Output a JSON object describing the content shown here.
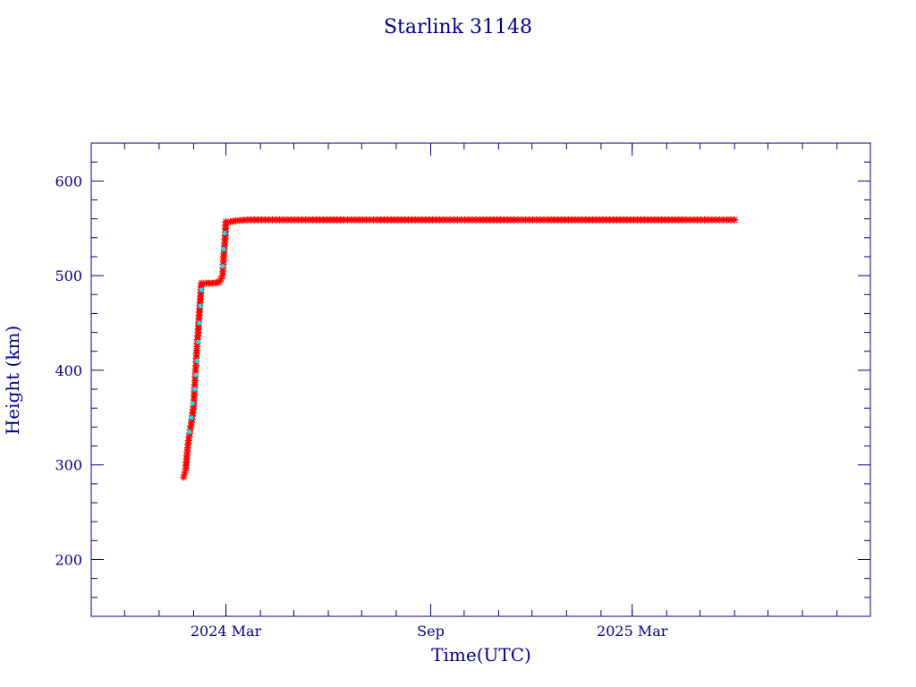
{
  "chart_data": {
    "type": "scatter",
    "title": "Starlink 31148",
    "xlabel": "Time(UTC)",
    "ylabel": "Height (km)",
    "xlim": [
      "2023-11-01",
      "2025-10-01"
    ],
    "ylim": [
      140,
      640
    ],
    "x_ticks": [
      {
        "date": "2024-03-01",
        "label": "2024 Mar"
      },
      {
        "date": "2024-09-01",
        "label": "Sep"
      },
      {
        "date": "2025-03-01",
        "label": "2025 Mar"
      }
    ],
    "x_minor_ticks": [
      "2023-12-01",
      "2024-01-01",
      "2024-02-01",
      "2024-03-01",
      "2024-04-01",
      "2024-05-01",
      "2024-06-01",
      "2024-07-01",
      "2024-08-01",
      "2024-09-01",
      "2024-10-01",
      "2024-11-01",
      "2024-12-01",
      "2025-01-01",
      "2025-02-01",
      "2025-03-01",
      "2025-04-01",
      "2025-05-01",
      "2025-06-01",
      "2025-07-01",
      "2025-08-01",
      "2025-09-01"
    ],
    "y_ticks": [
      200,
      300,
      400,
      500,
      600
    ],
    "colors": {
      "axis": "#00008b",
      "series_main": "#ff0000",
      "series_raise": "#00e5ee"
    },
    "series": [
      {
        "color": "#ff0000",
        "marker": "star",
        "points": [
          [
            "2024-01-23",
            287
          ],
          [
            "2024-01-25",
            296
          ],
          [
            "2024-01-26",
            310
          ],
          [
            "2024-01-27",
            322
          ],
          [
            "2024-01-30",
            345
          ],
          [
            "2024-02-01",
            362
          ],
          [
            "2024-02-02",
            385
          ],
          [
            "2024-02-03",
            405
          ],
          [
            "2024-02-04",
            425
          ],
          [
            "2024-02-05",
            440
          ],
          [
            "2024-02-06",
            458
          ],
          [
            "2024-02-07",
            475
          ],
          [
            "2024-02-08",
            492
          ],
          [
            "2024-02-12",
            492
          ],
          [
            "2024-02-18",
            492
          ],
          [
            "2024-02-24",
            493
          ],
          [
            "2024-02-27",
            500
          ],
          [
            "2024-02-28",
            520
          ],
          [
            "2024-02-29",
            535
          ],
          [
            "2024-03-01",
            557
          ],
          [
            "2024-03-05",
            557
          ],
          [
            "2024-03-10",
            558
          ],
          [
            "2024-03-20",
            559
          ],
          [
            "2024-04-15",
            559
          ],
          [
            "2024-05-15",
            559
          ],
          [
            "2024-06-15",
            559
          ],
          [
            "2024-07-15",
            559
          ],
          [
            "2024-08-15",
            559
          ],
          [
            "2024-09-15",
            559
          ],
          [
            "2024-10-15",
            559
          ],
          [
            "2024-11-15",
            559
          ],
          [
            "2024-12-15",
            559
          ],
          [
            "2025-01-15",
            559
          ],
          [
            "2025-02-15",
            559
          ],
          [
            "2025-03-15",
            559
          ],
          [
            "2025-04-15",
            559
          ],
          [
            "2025-05-15",
            559
          ],
          [
            "2025-06-01",
            559
          ]
        ]
      },
      {
        "color": "#00e5ee",
        "marker": "dot",
        "points": [
          [
            "2024-01-28",
            335
          ],
          [
            "2024-01-30",
            350
          ],
          [
            "2024-01-31",
            365
          ],
          [
            "2024-02-02",
            380
          ],
          [
            "2024-02-03",
            395
          ],
          [
            "2024-02-04",
            410
          ],
          [
            "2024-02-05",
            430
          ],
          [
            "2024-02-06",
            450
          ],
          [
            "2024-02-07",
            468
          ],
          [
            "2024-02-08",
            485
          ],
          [
            "2024-02-27",
            510
          ],
          [
            "2024-02-28",
            528
          ],
          [
            "2024-02-29",
            545
          ]
        ]
      }
    ]
  }
}
